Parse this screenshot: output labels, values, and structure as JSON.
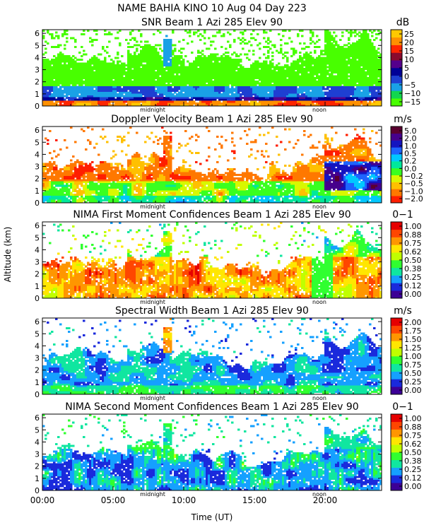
{
  "figure": {
    "title": "NAME BAHIA KINO   10 Aug 04 Day 223",
    "ylabel": "Altitude (km)",
    "xlabel": "Time (UT)",
    "x_ticks": [
      "00:00",
      "05:00",
      "10:00",
      "15:00",
      "20:00"
    ],
    "markers": {
      "midnight": "midnight",
      "noon": "noon"
    }
  },
  "chart_data": [
    {
      "type": "heatmap",
      "title": "SNR Beam 1 Azi 285 Elev 90",
      "units": "dB",
      "xlabel": "Time (UT)",
      "ylabel": "Altitude (km)",
      "x_range_hours": [
        0,
        24
      ],
      "y_range_km": [
        0,
        6.3
      ],
      "y_ticks": [
        0,
        1,
        2,
        3,
        4,
        5,
        6
      ],
      "colorbar_ticks": [
        "25",
        "20",
        "15",
        "10",
        "5",
        "0",
        "−5",
        "−10",
        "−15"
      ],
      "colorbar_range": [
        -17,
        28
      ],
      "colors": [
        "#48ff00",
        "#12d64f",
        "#19a1e6",
        "#1e3fd2",
        "#000096",
        "#55008c",
        "#8a0a2e",
        "#ff2500",
        "#ff9000",
        "#ffc800"
      ]
    },
    {
      "type": "heatmap",
      "title": "Doppler Velocity Beam 1 Azi 285 Elev 90",
      "units": "m/s",
      "xlabel": "Time (UT)",
      "ylabel": "Altitude (km)",
      "x_range_hours": [
        0,
        24
      ],
      "y_range_km": [
        0,
        6.3
      ],
      "y_ticks": [
        0,
        1,
        2,
        3,
        4,
        5,
        6
      ],
      "colorbar_ticks": [
        "5.0",
        "2.0",
        "1.0",
        "0.5",
        "0.2",
        "0.0",
        "−0.2",
        "−0.5",
        "−1.0",
        "−2.0"
      ],
      "colors": [
        "#ff1e00",
        "#ff7800",
        "#ffc000",
        "#d8f800",
        "#39ff20",
        "#00e89c",
        "#00c8ff",
        "#1e64ff",
        "#1414c0",
        "#46008c",
        "#5a0030"
      ]
    },
    {
      "type": "heatmap",
      "title": "NIMA First Moment Confidences Beam 1 Azi 285 Elev 90",
      "units": "0−1",
      "xlabel": "Time (UT)",
      "ylabel": "Altitude (km)",
      "x_range_hours": [
        0,
        24
      ],
      "y_range_km": [
        0,
        6.3
      ],
      "y_ticks": [
        0,
        1,
        2,
        3,
        4,
        5,
        6
      ],
      "colorbar_ticks": [
        "1.00",
        "0.88",
        "0.75",
        "0.62",
        "0.50",
        "0.38",
        "0.25",
        "0.12",
        "0.00"
      ],
      "colors": [
        "#3c0096",
        "#1a2adc",
        "#15a0ff",
        "#10e6a0",
        "#30ff30",
        "#c0ff00",
        "#ffe600",
        "#ff9600",
        "#ff4600",
        "#e60000"
      ]
    },
    {
      "type": "heatmap",
      "title": "Spectral Width Beam 1 Azi 285 Elev 90",
      "units": "m/s",
      "xlabel": "Time (UT)",
      "ylabel": "Altitude (km)",
      "x_range_hours": [
        0,
        24
      ],
      "y_range_km": [
        0,
        6.3
      ],
      "y_ticks": [
        0,
        1,
        2,
        3,
        4,
        5,
        6
      ],
      "colorbar_ticks": [
        "2.00",
        "1.75",
        "1.50",
        "1.25",
        "1.00",
        "0.75",
        "0.50",
        "0.25",
        "0.00"
      ],
      "colors": [
        "#3c0096",
        "#1a2adc",
        "#15a0ff",
        "#10e6a0",
        "#30ff30",
        "#c0ff00",
        "#ffe600",
        "#ff9600",
        "#ff4600",
        "#e60000"
      ]
    },
    {
      "type": "heatmap",
      "title": "NIMA Second Moment Confidences Beam 1 Azi 285 Elev 90",
      "units": "0−1",
      "xlabel": "Time (UT)",
      "ylabel": "Altitude (km)",
      "x_range_hours": [
        0,
        24
      ],
      "y_range_km": [
        0,
        6.3
      ],
      "y_ticks": [
        0,
        1,
        2,
        3,
        4,
        5,
        6
      ],
      "colorbar_ticks": [
        "1.00",
        "0.88",
        "0.75",
        "0.62",
        "0.50",
        "0.38",
        "0.25",
        "0.12",
        "0.00"
      ],
      "colors": [
        "#3c0096",
        "#1a2adc",
        "#15a0ff",
        "#10e6a0",
        "#30ff30",
        "#c0ff00",
        "#ffe600",
        "#ff9600",
        "#ff4600",
        "#e60000"
      ]
    }
  ]
}
